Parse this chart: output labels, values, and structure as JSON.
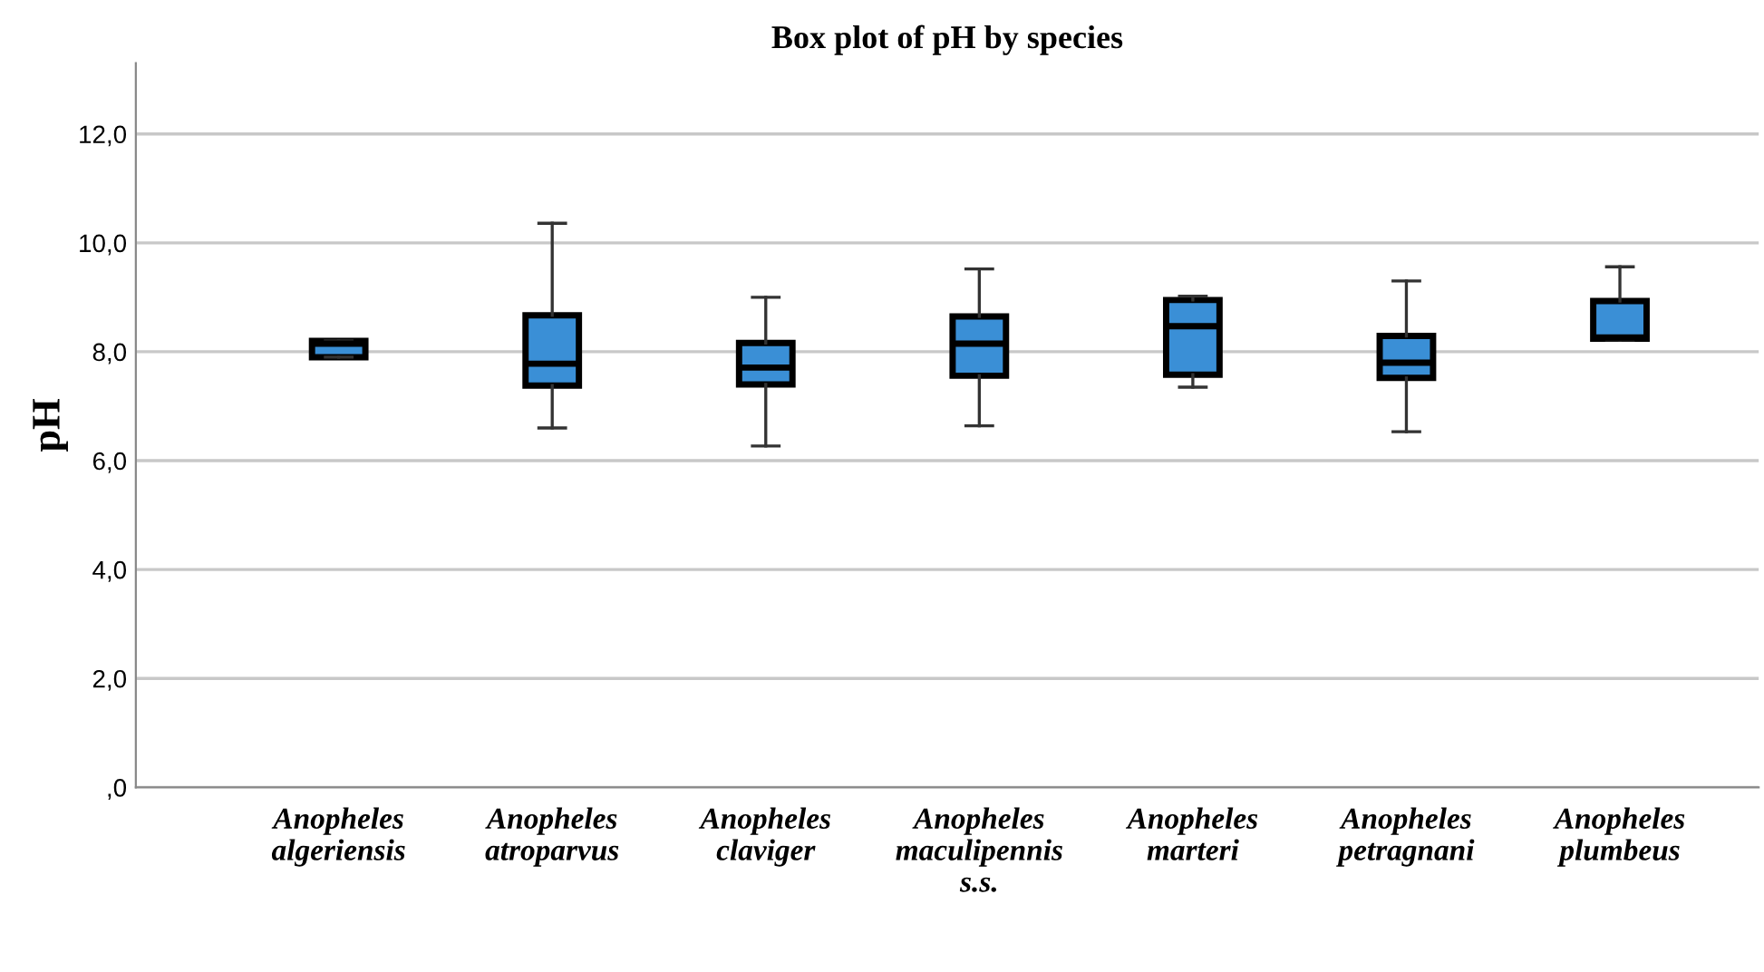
{
  "chart_data": {
    "type": "box",
    "title": "Box plot of pH by species",
    "ylabel": "pH",
    "categories": [
      "Anopheles\nalgeriensis",
      "Anopheles\natroparvus",
      "Anopheles\nclaviger",
      "Anopheles\nmaculipennis\ns.s.",
      "Anopheles\nmarteri",
      "Anopheles\npetragnani",
      "Anopheles\nplumbeus"
    ],
    "boxes": [
      {
        "low": 7.9,
        "q1": 7.9,
        "median": 8.15,
        "q3": 8.2,
        "high": 8.2
      },
      {
        "low": 6.6,
        "q1": 7.38,
        "median": 7.78,
        "q3": 8.67,
        "high": 10.36
      },
      {
        "low": 6.27,
        "q1": 7.4,
        "median": 7.71,
        "q3": 8.16,
        "high": 9.0
      },
      {
        "low": 6.64,
        "q1": 7.56,
        "median": 8.15,
        "q3": 8.65,
        "high": 9.52
      },
      {
        "low": 7.35,
        "q1": 7.58,
        "median": 8.47,
        "q3": 8.95,
        "high": 9.02
      },
      {
        "low": 6.53,
        "q1": 7.52,
        "median": 7.8,
        "q3": 8.29,
        "high": 9.3
      },
      {
        "low": 8.22,
        "q1": 8.24,
        "median": 8.26,
        "q3": 8.93,
        "high": 9.56
      }
    ],
    "color": "#3a8fd6",
    "ylim": [
      0,
      13.3
    ],
    "yticks": [
      {
        "value": 0,
        "label": ",0"
      },
      {
        "value": 2,
        "label": "2,0"
      },
      {
        "value": 4,
        "label": "4,0"
      },
      {
        "value": 6,
        "label": "6,0"
      },
      {
        "value": 8,
        "label": "8,0"
      },
      {
        "value": 10,
        "label": "10,0"
      },
      {
        "value": 12,
        "label": "12,0"
      }
    ],
    "grid": "y",
    "legend": false
  }
}
